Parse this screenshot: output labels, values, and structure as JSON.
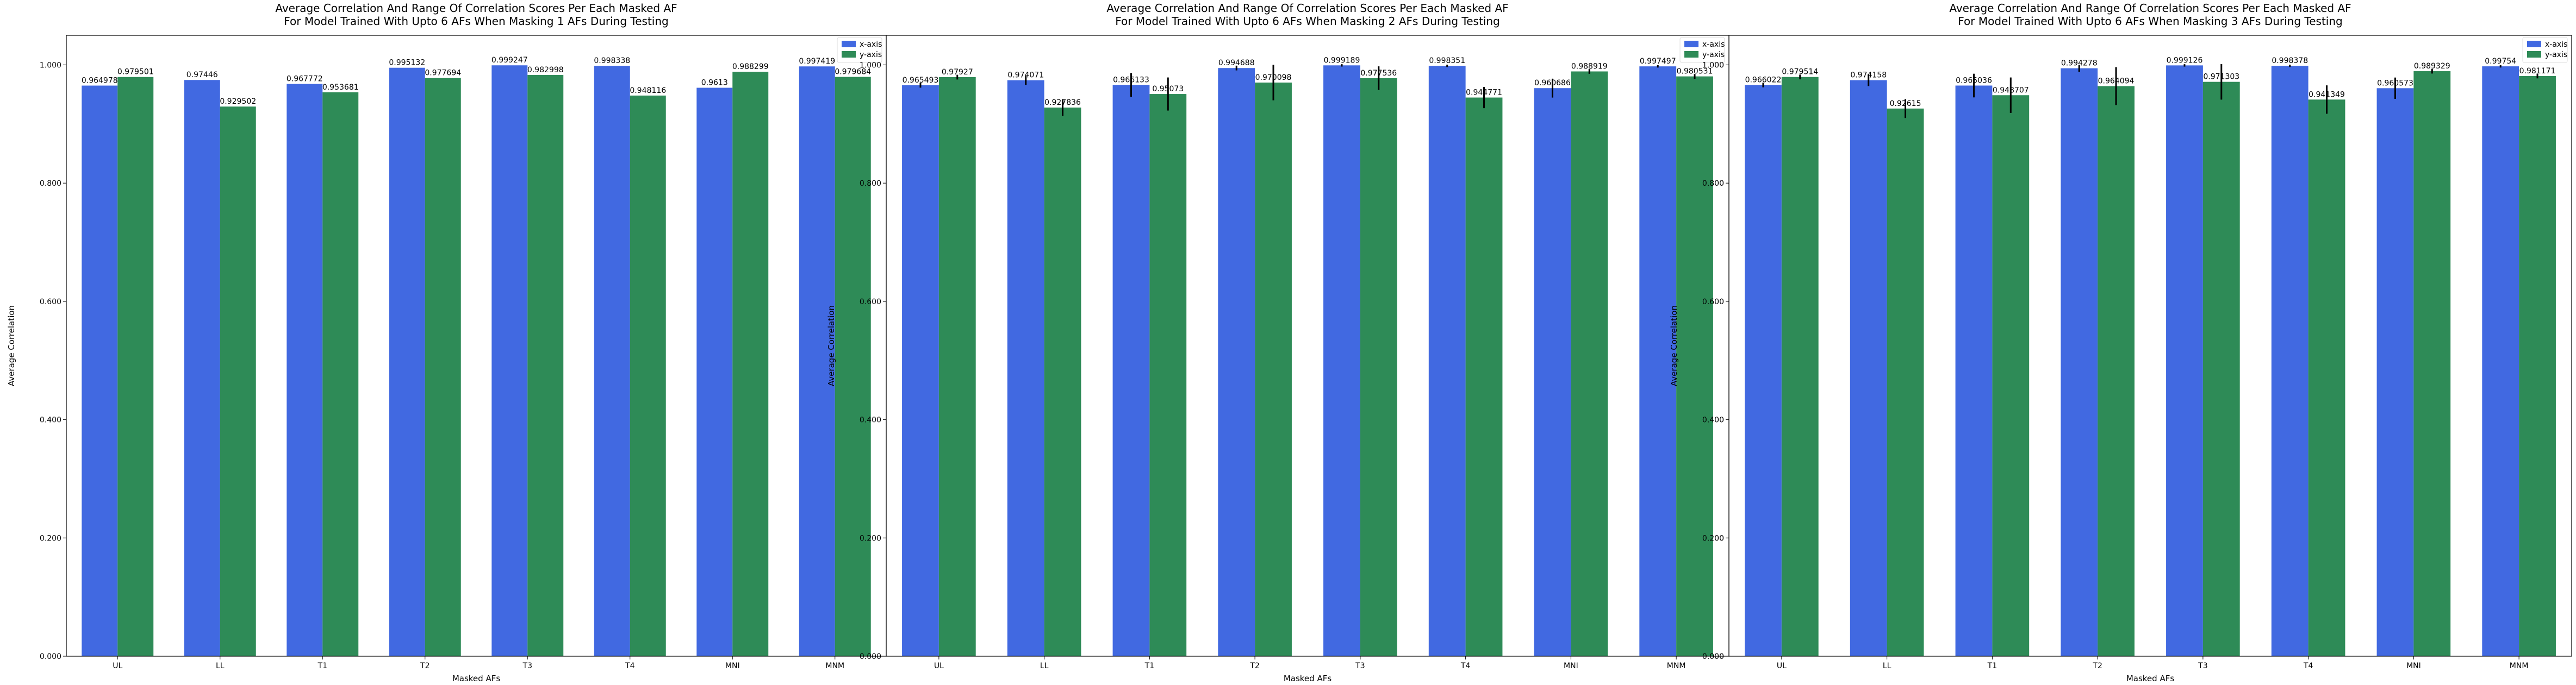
{
  "chart_data": [
    {
      "type": "bar",
      "title_line1": "Average Correlation And Range Of Correlation Scores Per Each Masked AF",
      "title_line2": "For Model Trained With Upto 6 AFs When Masking 1 AFs During Testing",
      "xlabel": "Masked AFs",
      "ylabel": "Average Correlation",
      "ylim": [
        0,
        1.05
      ],
      "yticks": [
        "0.000",
        "0.200",
        "0.400",
        "0.600",
        "0.800",
        "1.000"
      ],
      "ytick_values": [
        0,
        0.2,
        0.4,
        0.6,
        0.8,
        1.0
      ],
      "legend_position": "top-right",
      "categories": [
        "UL",
        "LL",
        "T1",
        "T2",
        "T3",
        "T4",
        "MNI",
        "MNM"
      ],
      "series": [
        {
          "name": "x-axis",
          "color": "#4169E1",
          "values": [
            0.964978,
            0.97446,
            0.967772,
            0.995132,
            0.999247,
            0.998338,
            0.9613,
            0.997419
          ],
          "labels": [
            "0.964978",
            "0.97446",
            "0.967772",
            "0.995132",
            "0.999247",
            "0.998338",
            "0.9613",
            "0.997419"
          ],
          "err": [
            0,
            0,
            0,
            0,
            0,
            0,
            0,
            0
          ]
        },
        {
          "name": "y-axis",
          "color": "#2E8B57",
          "values": [
            0.979501,
            0.929502,
            0.953681,
            0.977694,
            0.982998,
            0.948116,
            0.988299,
            0.979684
          ],
          "labels": [
            "0.979501",
            "0.929502",
            "0.953681",
            "0.977694",
            "0.982998",
            "0.948116",
            "0.988299",
            "0.979684"
          ],
          "err": [
            0,
            0,
            0,
            0,
            0,
            0,
            0,
            0
          ]
        }
      ]
    },
    {
      "type": "bar",
      "title_line1": "Average Correlation And Range Of Correlation Scores Per Each Masked AF",
      "title_line2": "For Model Trained With Upto 6 AFs When Masking 2 AFs During Testing",
      "xlabel": "Masked AFs",
      "ylabel": "Average Correlation",
      "ylim": [
        0,
        1.05
      ],
      "yticks": [
        "0.000",
        "0.200",
        "0.400",
        "0.600",
        "0.800",
        "1.000"
      ],
      "ytick_values": [
        0,
        0.2,
        0.4,
        0.6,
        0.8,
        1.0
      ],
      "legend_position": "top-right",
      "categories": [
        "UL",
        "LL",
        "T1",
        "T2",
        "T3",
        "T4",
        "MNI",
        "MNM"
      ],
      "series": [
        {
          "name": "x-axis",
          "color": "#4169E1",
          "values": [
            0.965493,
            0.974071,
            0.966133,
            0.994688,
            0.999189,
            0.998351,
            0.960686,
            0.997497
          ],
          "labels": [
            "0.965493",
            "0.974071",
            "0.966133",
            "0.994688",
            "0.999189",
            "0.998351",
            "0.960686",
            "0.997497"
          ],
          "err": [
            0.004,
            0.008,
            0.02,
            0.004,
            0.002,
            0.002,
            0.016,
            0.002
          ]
        },
        {
          "name": "y-axis",
          "color": "#2E8B57",
          "values": [
            0.97927,
            0.927836,
            0.95073,
            0.970098,
            0.977536,
            0.944771,
            0.988919,
            0.980531
          ],
          "labels": [
            "0.97927",
            "0.927836",
            "0.95073",
            "0.970098",
            "0.977536",
            "0.944771",
            "0.988919",
            "0.980531"
          ],
          "err": [
            0.004,
            0.014,
            0.028,
            0.03,
            0.02,
            0.018,
            0.004,
            0.004
          ]
        }
      ]
    },
    {
      "type": "bar",
      "title_line1": "Average Correlation And Range Of Correlation Scores Per Each Masked AF",
      "title_line2": "For Model Trained With Upto 6 AFs When Masking 3 AFs During Testing",
      "xlabel": "Masked AFs",
      "ylabel": "Average Correlation",
      "ylim": [
        0,
        1.05
      ],
      "yticks": [
        "0.000",
        "0.200",
        "0.400",
        "0.600",
        "0.800",
        "1.000"
      ],
      "ytick_values": [
        0,
        0.2,
        0.4,
        0.6,
        0.8,
        1.0
      ],
      "legend_position": "top-right",
      "categories": [
        "UL",
        "LL",
        "T1",
        "T2",
        "T3",
        "T4",
        "MNI",
        "MNM"
      ],
      "series": [
        {
          "name": "x-axis",
          "color": "#4169E1",
          "values": [
            0.966022,
            0.974158,
            0.965036,
            0.994278,
            0.999126,
            0.998378,
            0.960573,
            0.99754
          ],
          "labels": [
            "0.966022",
            "0.974158",
            "0.965036",
            "0.994278",
            "0.999126",
            "0.998378",
            "0.960573",
            "0.99754"
          ],
          "err": [
            0.004,
            0.01,
            0.02,
            0.006,
            0.002,
            0.002,
            0.018,
            0.002
          ]
        },
        {
          "name": "y-axis",
          "color": "#2E8B57",
          "values": [
            0.979514,
            0.92615,
            0.948707,
            0.964094,
            0.971303,
            0.941349,
            0.989329,
            0.981171
          ],
          "labels": [
            "0.979514",
            "0.92615",
            "0.948707",
            "0.964094",
            "0.971303",
            "0.941349",
            "0.989329",
            "0.981171"
          ],
          "err": [
            0.004,
            0.016,
            0.03,
            0.032,
            0.03,
            0.024,
            0.004,
            0.004
          ]
        }
      ]
    }
  ]
}
